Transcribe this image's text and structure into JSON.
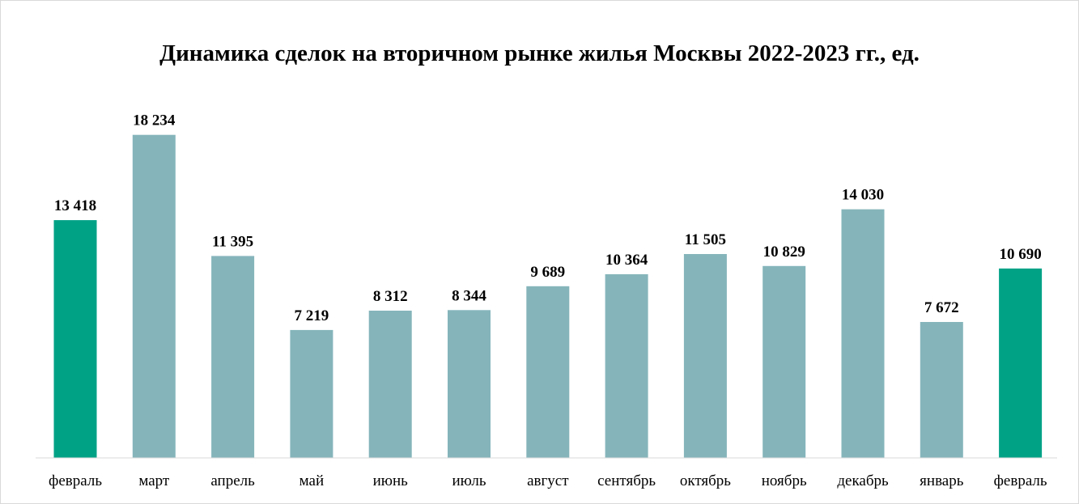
{
  "chart_data": {
    "type": "bar",
    "title": "Динамика сделок на вторичном рынке жилья Москвы 2022-2023 гг., ед.",
    "xlabel": "",
    "ylabel": "",
    "categories": [
      "февраль",
      "март",
      "апрель",
      "май",
      "июнь",
      "июль",
      "август",
      "сентябрь",
      "октябрь",
      "ноябрь",
      "декабрь",
      "январь",
      "февраль"
    ],
    "values": [
      13418,
      18234,
      11395,
      7219,
      8312,
      8344,
      9689,
      10364,
      11505,
      10829,
      14030,
      7672,
      10690
    ],
    "value_labels": [
      "13 418",
      "18 234",
      "11 395",
      "7 219",
      "8 312",
      "8 344",
      "9 689",
      "10 364",
      "11 505",
      "10 829",
      "14 030",
      "7 672",
      "10 690"
    ],
    "ylim": [
      0,
      20000
    ],
    "grid": false,
    "legend": "none",
    "colors": {
      "default_bar": "#85b5bb",
      "highlight_bar": "#00a286",
      "axis": "#d9d9d9"
    },
    "highlighted": [
      true,
      false,
      false,
      false,
      false,
      false,
      false,
      false,
      false,
      false,
      false,
      false,
      true
    ]
  }
}
